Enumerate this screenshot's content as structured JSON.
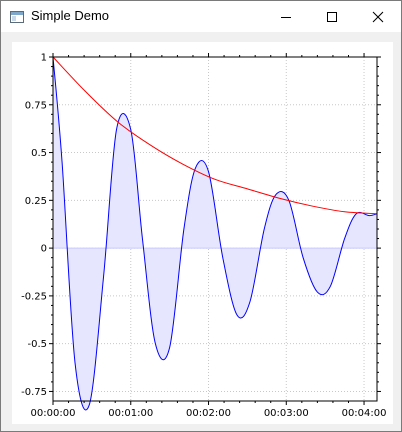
{
  "window": {
    "title": "Simple Demo",
    "icon": "app-window-icon",
    "controls": [
      "minimize-icon",
      "maximize-icon",
      "close-icon"
    ]
  },
  "chart_data": {
    "type": "line",
    "title": "",
    "xlabel": "",
    "ylabel": "",
    "x_tick_labels": [
      "00:00:00",
      "00:01:00",
      "00:02:00",
      "00:03:00",
      "00:04:00"
    ],
    "y_tick_labels": [
      "1",
      "0.75",
      "0.5",
      "0.25",
      "0",
      "-0.25",
      "-0.5",
      "-0.75"
    ],
    "xlim": [
      0,
      250
    ],
    "ylim": [
      -0.8,
      1.0
    ],
    "grid": true,
    "series": [
      {
        "color": "#0000ff",
        "fill": "#e6e6ff",
        "x": [
          0,
          7,
          17,
          28,
          39,
          49,
          60,
          69,
          79,
          90,
          101,
          110,
          120,
          131,
          142,
          152,
          163,
          172,
          182,
          193,
          204,
          214,
          225,
          234,
          244,
          250
        ],
        "y": [
          1.0,
          0.45,
          -0.6,
          -0.82,
          -0.15,
          0.62,
          0.62,
          0.05,
          -0.5,
          -0.52,
          0.1,
          0.42,
          0.4,
          -0.05,
          -0.35,
          -0.28,
          0.1,
          0.28,
          0.25,
          -0.05,
          -0.23,
          -0.2,
          0.05,
          0.18,
          0.17,
          0.18
        ]
      },
      {
        "color": "#ff0000",
        "x": [
          0,
          25,
          50,
          75,
          100,
          125,
          150,
          175,
          200,
          225,
          250
        ],
        "y": [
          1.0,
          0.82,
          0.66,
          0.54,
          0.44,
          0.36,
          0.31,
          0.26,
          0.22,
          0.19,
          0.18
        ]
      }
    ]
  }
}
